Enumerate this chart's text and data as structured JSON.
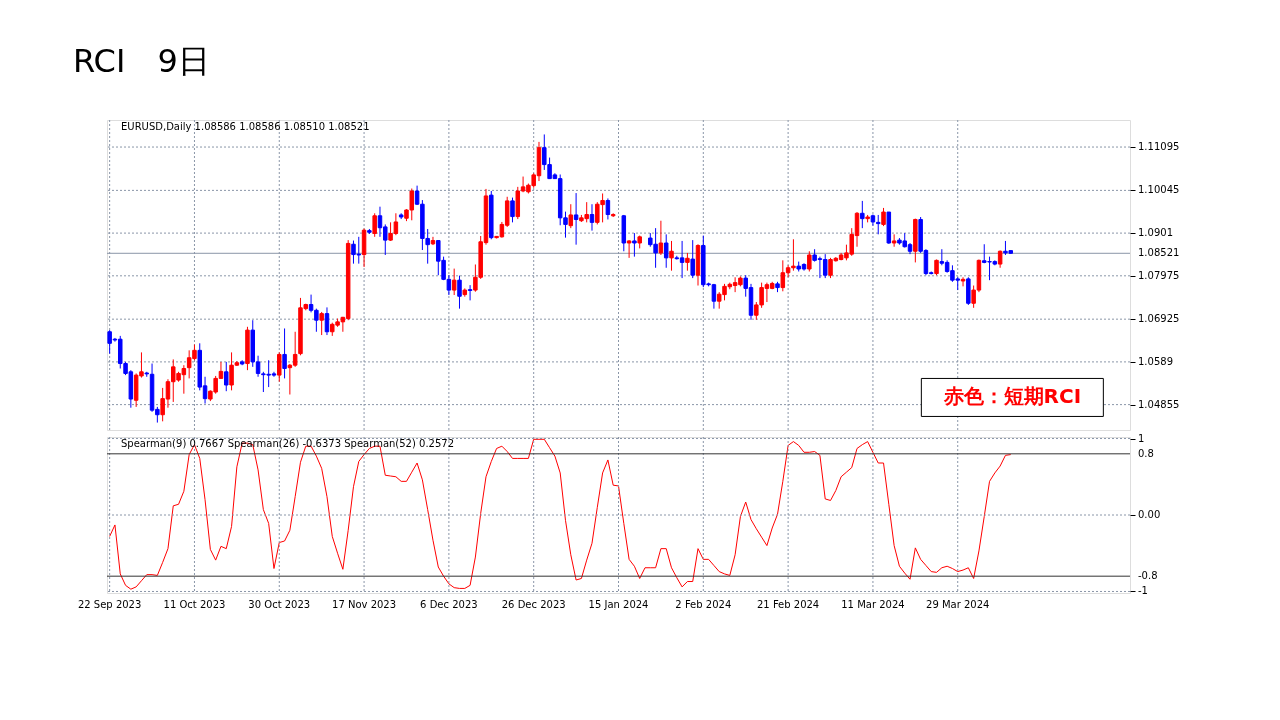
{
  "chart_data": [
    {
      "type": "candlestick",
      "title": "RCI　9日",
      "categories": [
        null,
        null,
        null,
        null,
        null,
        null,
        null,
        null,
        null,
        null,
        null,
        null,
        null,
        null,
        null,
        null,
        null,
        null,
        null,
        null,
        null,
        null,
        null,
        null,
        null,
        null,
        null,
        null,
        null,
        null,
        null,
        null,
        null,
        null,
        null,
        null,
        null,
        null,
        null,
        null,
        null,
        null,
        null,
        null,
        null,
        null,
        null,
        null,
        null,
        null,
        null,
        null,
        null,
        null,
        null,
        null,
        null,
        null,
        null,
        null,
        null,
        null,
        null,
        null,
        null,
        null,
        null,
        null,
        null,
        null,
        null,
        null,
        null,
        null,
        null,
        null,
        null,
        null,
        null,
        null,
        null,
        null,
        null,
        null,
        null,
        null,
        null,
        null,
        null,
        null,
        null,
        null,
        null,
        null,
        null,
        null,
        null,
        null,
        null,
        null,
        null,
        null,
        null,
        null,
        null,
        null,
        null,
        null,
        null,
        null,
        null,
        null,
        null,
        null,
        null,
        null,
        null,
        null,
        null,
        null,
        null,
        null,
        null,
        null,
        null,
        null,
        null,
        null,
        null,
        null,
        null,
        null,
        null,
        null,
        null,
        null,
        null,
        null,
        null,
        null,
        null,
        null,
        null,
        null,
        null,
        null,
        null,
        null,
        null,
        null,
        null,
        null,
        null,
        null,
        null,
        null,
        null,
        null,
        null,
        null,
        null,
        null,
        null,
        null,
        null,
        null,
        null,
        null,
        null,
        null,
        null,
        null,
        null,
        null,
        null,
        null,
        null,
        null,
        null,
        null,
        null,
        null,
        null,
        null,
        null,
        null,
        null,
        null,
        null,
        null,
        null,
        null,
        null
      ],
      "ohlc": [
        [
          1.0662,
          1.0666,
          1.0609,
          1.0634
        ],
        [
          1.0644,
          1.0647,
          1.0638,
          1.0642
        ],
        [
          1.0644,
          1.0652,
          1.0573,
          1.0585
        ],
        [
          1.0585,
          1.0589,
          1.0557,
          1.0561
        ],
        [
          1.0565,
          1.0569,
          1.0478,
          1.0499
        ],
        [
          1.0496,
          1.0561,
          1.048,
          1.0557
        ],
        [
          1.0555,
          1.0612,
          1.0551,
          1.0565
        ],
        [
          1.0562,
          1.0565,
          1.0553,
          1.056
        ],
        [
          1.0559,
          1.0585,
          1.0468,
          1.0472
        ],
        [
          1.0474,
          1.048,
          1.0442,
          1.0461
        ],
        [
          1.0461,
          1.0526,
          1.0445,
          1.05
        ],
        [
          1.0499,
          1.0547,
          1.0478,
          1.0541
        ],
        [
          1.0541,
          1.0595,
          1.0492,
          1.0577
        ],
        [
          1.0545,
          1.0565,
          1.0541,
          1.0561
        ],
        [
          1.0558,
          1.0581,
          1.0512,
          1.0573
        ],
        [
          1.0575,
          1.0617,
          1.0549,
          1.0599
        ],
        [
          1.0597,
          1.0631,
          1.0593,
          1.0617
        ],
        [
          1.0617,
          1.0634,
          1.052,
          1.0528
        ],
        [
          1.0531,
          1.0553,
          1.0488,
          1.05
        ],
        [
          1.0499,
          1.052,
          1.0494,
          1.0518
        ],
        [
          1.0516,
          1.0555,
          1.0512,
          1.0549
        ],
        [
          1.0549,
          1.0589,
          1.0549,
          1.0566
        ],
        [
          1.0565,
          1.0589,
          1.0518,
          1.0533
        ],
        [
          1.0533,
          1.0612,
          1.052,
          1.0581
        ],
        [
          1.0581,
          1.0591,
          1.0579,
          1.0587
        ],
        [
          1.0589,
          1.0593,
          1.0581,
          1.0584
        ],
        [
          1.0585,
          1.0674,
          1.0569,
          1.0666
        ],
        [
          1.0666,
          1.069,
          1.0577,
          1.0589
        ],
        [
          1.0589,
          1.0604,
          1.0553,
          1.0561
        ],
        [
          1.056,
          1.0565,
          1.0516,
          1.0558
        ],
        [
          1.0559,
          1.0593,
          1.0528,
          1.0557
        ],
        [
          1.056,
          1.0565,
          1.0553,
          1.0557
        ],
        [
          1.0557,
          1.0612,
          1.0541,
          1.0607
        ],
        [
          1.0607,
          1.067,
          1.0549,
          1.0573
        ],
        [
          1.0575,
          1.0584,
          1.051,
          1.0581
        ],
        [
          1.0581,
          1.0662,
          1.0577,
          1.0607
        ],
        [
          1.0609,
          1.0744,
          1.0605,
          1.072
        ],
        [
          1.0718,
          1.073,
          1.0714,
          1.0728
        ],
        [
          1.0728,
          1.0752,
          1.0709,
          1.0714
        ],
        [
          1.0714,
          1.0718,
          1.0662,
          1.069
        ],
        [
          1.069,
          1.071,
          1.0654,
          1.0706
        ],
        [
          1.0706,
          1.0721,
          1.0654,
          1.0662
        ],
        [
          1.0662,
          1.0684,
          1.0652,
          1.068
        ],
        [
          1.0678,
          1.0694,
          1.0674,
          1.0686
        ],
        [
          1.0686,
          1.0698,
          1.0662,
          1.0697
        ],
        [
          1.0694,
          1.0884,
          1.069,
          1.0876
        ],
        [
          1.0874,
          1.0883,
          1.0827,
          1.0849
        ],
        [
          1.085,
          1.0892,
          1.0827,
          1.0848
        ],
        [
          1.0849,
          1.0912,
          1.0819,
          1.0908
        ],
        [
          1.0907,
          1.0911,
          1.0899,
          1.0903
        ],
        [
          1.09,
          1.0949,
          1.0892,
          1.0943
        ],
        [
          1.0943,
          1.0965,
          1.0892,
          1.0914
        ],
        [
          1.0916,
          1.0922,
          1.0848,
          1.0884
        ],
        [
          1.0884,
          1.0927,
          1.0882,
          1.09
        ],
        [
          1.09,
          1.0949,
          1.0896,
          1.0928
        ],
        [
          1.0945,
          1.0949,
          1.0935,
          1.094
        ],
        [
          1.0937,
          1.0959,
          1.093,
          1.0957
        ],
        [
          1.0957,
          1.1009,
          1.0932,
          1.1003
        ],
        [
          1.1003,
          1.1016,
          1.0969,
          1.0971
        ],
        [
          1.0971,
          1.0981,
          1.086,
          1.0888
        ],
        [
          1.0888,
          1.0911,
          1.0827,
          1.0873
        ],
        [
          1.0875,
          1.0892,
          1.0872,
          1.0883
        ],
        [
          1.0883,
          1.0884,
          1.0799,
          1.0833
        ],
        [
          1.0835,
          1.0844,
          1.0787,
          1.0789
        ],
        [
          1.0789,
          1.0799,
          1.0751,
          1.0763
        ],
        [
          1.0763,
          1.0815,
          1.0751,
          1.0787
        ],
        [
          1.0787,
          1.0798,
          1.0718,
          1.0748
        ],
        [
          1.0752,
          1.0767,
          1.0747,
          1.0763
        ],
        [
          1.0764,
          1.0775,
          1.0738,
          1.0762
        ],
        [
          1.0763,
          1.0825,
          1.0759,
          1.0794
        ],
        [
          1.0794,
          1.0894,
          1.079,
          1.088
        ],
        [
          1.0878,
          1.1008,
          1.0873,
          1.0991
        ],
        [
          1.0993,
          1.1003,
          1.0886,
          1.089
        ],
        [
          1.089,
          1.0894,
          1.0888,
          1.0893
        ],
        [
          1.0892,
          1.0928,
          1.089,
          1.0922
        ],
        [
          1.092,
          1.0989,
          1.0916,
          1.0979
        ],
        [
          1.0979,
          1.0987,
          1.0927,
          1.0941
        ],
        [
          1.0941,
          1.1013,
          1.0935,
          1.1003
        ],
        [
          1.1003,
          1.1038,
          1.1,
          1.1013
        ],
        [
          1.1001,
          1.1021,
          1.0997,
          1.1017
        ],
        [
          1.1016,
          1.1046,
          1.1011,
          1.1042
        ],
        [
          1.104,
          1.1122,
          1.1027,
          1.1108
        ],
        [
          1.1108,
          1.114,
          1.1054,
          1.1067
        ],
        [
          1.1067,
          1.1084,
          1.1032,
          1.1033
        ],
        [
          1.1042,
          1.1046,
          1.1032,
          1.1033
        ],
        [
          1.1033,
          1.1043,
          1.092,
          1.0938
        ],
        [
          1.0938,
          1.0953,
          1.089,
          1.0922
        ],
        [
          1.0919,
          1.0971,
          1.0913,
          1.0945
        ],
        [
          1.0945,
          1.0998,
          1.0873,
          1.0934
        ],
        [
          1.0931,
          1.0945,
          1.0928,
          1.0938
        ],
        [
          1.0936,
          1.0976,
          1.0927,
          1.0946
        ],
        [
          1.0946,
          1.0971,
          1.0907,
          1.0927
        ],
        [
          1.0927,
          1.0976,
          1.0922,
          1.0971
        ],
        [
          1.097,
          1.0997,
          1.0927,
          1.098
        ],
        [
          1.098,
          1.0985,
          1.0934,
          1.0946
        ],
        [
          1.0943,
          1.0949,
          1.094,
          1.0946
        ],
        null,
        [
          1.0943,
          1.0945,
          1.0857,
          1.0877
        ],
        [
          1.0877,
          1.0884,
          1.0841,
          1.0882
        ],
        [
          1.0882,
          1.0901,
          1.0844,
          1.0877
        ],
        [
          1.0877,
          1.0895,
          1.0864,
          1.0892
        ],
        null,
        [
          1.0889,
          1.0901,
          1.0868,
          1.0873
        ],
        [
          1.0874,
          1.0913,
          1.0817,
          1.0853
        ],
        [
          1.0853,
          1.0931,
          1.0848,
          1.0877
        ],
        [
          1.0877,
          1.0898,
          1.0817,
          1.0841
        ],
        [
          1.0841,
          1.0882,
          1.081,
          1.0857
        ],
        [
          1.0841,
          1.0846,
          1.0837,
          1.0839
        ],
        [
          1.0841,
          1.0882,
          1.0792,
          1.083
        ],
        [
          1.083,
          1.0853,
          1.081,
          1.084
        ],
        [
          1.0838,
          1.0884,
          1.0792,
          1.0799
        ],
        [
          1.0799,
          1.0874,
          1.0774,
          1.0871
        ],
        [
          1.0871,
          1.0895,
          1.077,
          1.0776
        ],
        [
          1.0778,
          1.0781,
          1.0772,
          1.0776
        ],
        [
          1.0776,
          1.0778,
          1.0718,
          1.0736
        ],
        [
          1.0736,
          1.0758,
          1.0718,
          1.0753
        ],
        [
          1.0752,
          1.0778,
          1.0738,
          1.0772
        ],
        [
          1.0771,
          1.0781,
          1.0765,
          1.0777
        ],
        [
          1.0774,
          1.0794,
          1.0758,
          1.0781
        ],
        [
          1.0776,
          1.0796,
          1.0772,
          1.0792
        ],
        [
          1.0792,
          1.0799,
          1.0747,
          1.0767
        ],
        [
          1.0769,
          1.0778,
          1.0691,
          1.0702
        ],
        [
          1.0702,
          1.0734,
          1.0691,
          1.0727
        ],
        [
          1.0727,
          1.0781,
          1.072,
          1.0769
        ],
        [
          1.0767,
          1.0781,
          1.0734,
          1.0776
        ],
        [
          1.0767,
          1.0783,
          1.0765,
          1.0779
        ],
        [
          1.0778,
          1.0783,
          1.0758,
          1.0769
        ],
        [
          1.0769,
          1.0835,
          1.076,
          1.0805
        ],
        [
          1.0805,
          1.0823,
          1.0794,
          1.0817
        ],
        [
          1.0817,
          1.0886,
          1.081,
          1.0821
        ],
        [
          1.0821,
          1.0832,
          1.0808,
          1.0814
        ],
        [
          1.0825,
          1.0828,
          1.081,
          1.0814
        ],
        [
          1.0814,
          1.0857,
          1.0808,
          1.0848
        ],
        [
          1.0848,
          1.0862,
          1.0832,
          1.0835
        ],
        [
          1.0839,
          1.0844,
          1.0792,
          1.0837
        ],
        [
          1.0837,
          1.085,
          1.0792,
          1.0799
        ],
        [
          1.0799,
          1.0841,
          1.0792,
          1.0837
        ],
        [
          1.0834,
          1.0843,
          1.0832,
          1.084
        ],
        [
          1.0837,
          1.0853,
          1.0835,
          1.0848
        ],
        [
          1.0841,
          1.0873,
          1.0835,
          1.0853
        ],
        [
          1.085,
          1.0913,
          1.0846,
          1.0898
        ],
        [
          1.0895,
          1.0952,
          1.0868,
          1.0949
        ],
        [
          1.0949,
          1.0979,
          1.0913,
          1.0936
        ],
        [
          1.0936,
          1.0945,
          1.0927,
          1.094
        ],
        [
          1.0943,
          1.0946,
          1.0919,
          1.0928
        ],
        [
          1.0927,
          1.0945,
          1.0898,
          1.0924
        ],
        [
          1.0922,
          1.0962,
          1.0918,
          1.0952
        ],
        [
          1.0952,
          1.0952,
          1.0875,
          1.0877
        ],
        [
          1.0877,
          1.0898,
          1.0868,
          1.0882
        ],
        [
          1.0884,
          1.0889,
          1.0873,
          1.0877
        ],
        [
          1.0882,
          1.0901,
          1.0866,
          1.0868
        ],
        [
          1.0873,
          1.0877,
          1.085,
          1.0857
        ],
        [
          1.0857,
          1.0936,
          1.083,
          1.0934
        ],
        [
          1.0934,
          1.094,
          1.0853,
          1.0857
        ],
        [
          1.0859,
          1.0862,
          1.0799,
          1.0803
        ],
        [
          1.0805,
          1.0808,
          1.0801,
          1.0803
        ],
        [
          1.0803,
          1.0837,
          1.0799,
          1.0835
        ],
        [
          1.0832,
          1.0862,
          1.0823,
          1.0828
        ],
        [
          1.083,
          1.0835,
          1.0805,
          1.0808
        ],
        [
          1.081,
          1.0823,
          1.0783,
          1.0787
        ],
        [
          1.079,
          1.0794,
          1.0763,
          1.0787
        ],
        [
          1.0785,
          1.0794,
          1.0772,
          1.0789
        ],
        [
          1.079,
          1.0794,
          1.0727,
          1.0731
        ],
        [
          1.0731,
          1.0774,
          1.072,
          1.0763
        ],
        [
          1.0763,
          1.0837,
          1.0758,
          1.0835
        ],
        [
          1.0834,
          1.0874,
          1.0828,
          1.083
        ],
        [
          1.0832,
          1.0844,
          1.0787,
          1.0831
        ],
        [
          1.0832,
          1.0835,
          1.0823,
          1.0826
        ],
        [
          1.0826,
          1.0859,
          1.0817,
          1.0857
        ],
        [
          1.0857,
          1.0882,
          1.0848,
          1.0853
        ],
        [
          1.08586,
          1.08586,
          1.0851,
          1.08521
        ],
        null,
        null,
        null,
        null,
        null,
        null,
        null,
        null,
        null,
        null,
        null,
        null,
        null,
        null,
        null,
        null,
        null,
        null,
        null,
        null,
        null,
        null
      ],
      "colors": [
        "#0000ff",
        "#0000ff",
        "#0000ff",
        "#0000ff",
        "#0000ff",
        "#ff0000",
        "#ff0000",
        "#0000ff",
        "#0000ff",
        "#0000ff",
        "#ff0000",
        "#ff0000",
        "#ff0000",
        "#ff0000",
        "#ff0000",
        "#ff0000",
        "#ff0000",
        "#0000ff",
        "#0000ff",
        "#ff0000",
        "#ff0000",
        "#ff0000",
        "#0000ff",
        "#ff0000",
        "#ff0000",
        "#0000ff",
        "#ff0000",
        "#0000ff",
        "#0000ff",
        "#0000ff",
        "#0000ff",
        "#0000ff",
        "#ff0000",
        "#0000ff",
        "#ff0000",
        "#ff0000",
        "#ff0000",
        "#ff0000",
        "#0000ff",
        "#0000ff",
        "#ff0000",
        "#0000ff",
        "#ff0000",
        "#ff0000",
        "#ff0000",
        "#ff0000",
        "#0000ff",
        "#0000ff",
        "#ff0000",
        "#0000ff",
        "#ff0000",
        "#0000ff",
        "#0000ff",
        "#ff0000",
        "#ff0000",
        "#0000ff",
        "#ff0000",
        "#ff0000",
        "#0000ff",
        "#0000ff",
        "#0000ff",
        "#ff0000",
        "#0000ff",
        "#0000ff",
        "#0000ff",
        "#ff0000",
        "#0000ff",
        "#ff0000",
        "#0000ff",
        "#ff0000",
        "#ff0000",
        "#ff0000",
        "#0000ff",
        "#ff0000",
        "#ff0000",
        "#ff0000",
        "#0000ff",
        "#ff0000",
        "#ff0000",
        "#ff0000",
        "#ff0000",
        "#ff0000",
        "#0000ff",
        "#0000ff",
        "#0000ff",
        "#0000ff",
        "#0000ff",
        "#ff0000",
        "#0000ff",
        "#ff0000",
        "#ff0000",
        "#0000ff",
        "#ff0000",
        "#ff0000",
        "#0000ff",
        "#ff0000",
        null,
        "#0000ff",
        "#ff0000",
        "#0000ff",
        "#ff0000",
        null,
        "#0000ff",
        "#0000ff",
        "#ff0000",
        "#0000ff",
        "#ff0000",
        "#0000ff",
        "#0000ff",
        "#ff0000",
        "#0000ff",
        "#ff0000",
        "#0000ff",
        "#0000ff",
        "#0000ff",
        "#ff0000",
        "#ff0000",
        "#ff0000",
        "#ff0000",
        "#ff0000",
        "#0000ff",
        "#0000ff",
        "#ff0000",
        "#ff0000",
        "#ff0000",
        "#ff0000",
        "#0000ff",
        "#ff0000",
        "#ff0000",
        "#ff0000",
        "#0000ff",
        "#0000ff",
        "#ff0000",
        "#0000ff",
        "#0000ff",
        "#0000ff",
        "#ff0000",
        "#ff0000",
        "#ff0000",
        "#ff0000",
        "#ff0000",
        "#ff0000",
        "#0000ff",
        "#ff0000",
        "#0000ff",
        "#0000ff",
        "#ff0000",
        "#0000ff",
        "#ff0000",
        "#0000ff",
        "#0000ff",
        "#0000ff",
        "#ff0000",
        "#0000ff",
        "#0000ff",
        "#0000ff",
        "#ff0000",
        "#0000ff",
        "#0000ff",
        "#0000ff",
        "#0000ff",
        "#ff0000",
        "#0000ff",
        "#ff0000",
        "#ff0000",
        "#0000ff",
        "#0000ff",
        "#0000ff",
        "#ff0000",
        "#0000ff",
        "#0000ff",
        null,
        null,
        null,
        null,
        null,
        null,
        null,
        null,
        null,
        null,
        null,
        null,
        null,
        null,
        null,
        null,
        null,
        null,
        null,
        null,
        null,
        null
      ],
      "ylim": [
        1.0424,
        1.1175
      ],
      "yticks": [
        1.04855,
        1.0589,
        1.06925,
        1.07975,
        1.0901,
        1.10045,
        1.11095
      ],
      "ref_lines": [
        {
          "axis": "y",
          "value": 1.08521,
          "label": "1.08521",
          "color": "#8a96a8"
        }
      ],
      "grid": true,
      "tick_labels": "y",
      "annotations": [
        "EURUSD,Daily 1.08586 1.08586 1.08510 1.08521",
        "赤色：短期RCI"
      ]
    },
    {
      "type": "line",
      "categories": [
        "22 Sep 2023",
        null,
        null,
        null,
        null,
        null,
        null,
        null,
        null,
        null,
        null,
        null,
        null,
        null,
        null,
        null,
        "11 Oct 2023",
        null,
        null,
        null,
        null,
        null,
        null,
        null,
        null,
        null,
        null,
        null,
        null,
        null,
        null,
        null,
        "30 Oct 2023",
        null,
        null,
        null,
        null,
        null,
        null,
        null,
        null,
        null,
        null,
        null,
        null,
        null,
        null,
        null,
        "17 Nov 2023",
        null,
        null,
        null,
        null,
        null,
        null,
        null,
        null,
        null,
        null,
        null,
        null,
        null,
        null,
        null,
        "6 Dec 2023",
        null,
        null,
        null,
        null,
        null,
        null,
        null,
        null,
        null,
        null,
        null,
        null,
        null,
        null,
        null,
        "26 Dec 2023",
        null,
        null,
        null,
        null,
        null,
        null,
        null,
        null,
        null,
        null,
        null,
        null,
        null,
        null,
        null,
        "15 Jan 2024",
        null,
        null,
        null,
        null,
        null,
        null,
        null,
        null,
        null,
        null,
        null,
        null,
        null,
        null,
        null,
        "2 Feb 2024",
        null,
        null,
        null,
        null,
        null,
        null,
        null,
        null,
        null,
        null,
        null,
        null,
        null,
        null,
        null,
        "21 Feb 2024",
        null,
        null,
        null,
        null,
        null,
        null,
        null,
        null,
        null,
        null,
        null,
        null,
        null,
        null,
        null,
        "11 Mar 2024",
        null,
        null,
        null,
        null,
        null,
        null,
        null,
        null,
        null,
        null,
        null,
        null,
        null,
        null,
        null,
        "29 Mar 2024",
        null,
        null,
        null,
        null,
        null,
        null,
        null,
        null,
        null,
        null,
        null,
        null,
        null,
        null,
        null,
        null,
        null,
        null,
        null,
        null,
        null,
        null,
        null,
        null,
        null,
        null,
        null,
        null,
        null,
        null,
        null,
        null
      ],
      "series": [
        {
          "color": "#ff0000",
          "values": [
            -0.28,
            -0.13,
            -0.77,
            -0.92,
            -0.97,
            -0.94,
            -0.86,
            -0.78,
            -0.78,
            -0.79,
            -0.62,
            -0.44,
            0.12,
            0.14,
            0.31,
            0.79,
            0.92,
            0.74,
            0.2,
            -0.45,
            -0.59,
            -0.41,
            -0.44,
            -0.15,
            0.63,
            0.94,
            0.94,
            0.92,
            0.59,
            0.07,
            -0.11,
            -0.7,
            -0.36,
            -0.34,
            -0.2,
            0.24,
            0.69,
            0.9,
            0.9,
            0.77,
            0.61,
            0.24,
            -0.28,
            -0.5,
            -0.71,
            -0.2,
            0.37,
            0.7,
            0.79,
            0.87,
            0.9,
            0.9,
            0.52,
            0.51,
            0.5,
            0.44,
            0.44,
            0.56,
            0.68,
            0.46,
            0.07,
            -0.33,
            -0.68,
            -0.8,
            -0.9,
            -0.95,
            -0.96,
            -0.96,
            -0.92,
            -0.55,
            0.02,
            0.5,
            0.7,
            0.87,
            0.9,
            0.83,
            0.74,
            0.74,
            0.74,
            0.74,
            0.99,
            0.99,
            0.99,
            0.88,
            0.77,
            0.55,
            -0.07,
            -0.52,
            -0.85,
            -0.83,
            -0.59,
            -0.37,
            0.1,
            0.55,
            0.72,
            0.39,
            0.38,
            -0.11,
            -0.58,
            -0.67,
            -0.83,
            -0.69,
            -0.69,
            -0.69,
            -0.44,
            -0.44,
            -0.69,
            -0.82,
            -0.94,
            -0.87,
            -0.87,
            -0.44,
            -0.58,
            -0.58,
            -0.66,
            -0.74,
            -0.77,
            -0.79,
            -0.52,
            -0.02,
            0.17,
            -0.06,
            -0.18,
            -0.29,
            -0.4,
            -0.17,
            0.01,
            0.44,
            0.91,
            0.96,
            0.91,
            0.82,
            0.82,
            0.83,
            0.78,
            0.21,
            0.19,
            0.32,
            0.5,
            0.56,
            0.62,
            0.87,
            0.92,
            0.96,
            0.82,
            0.68,
            0.68,
            0.14,
            -0.4,
            -0.67,
            -0.76,
            -0.84,
            -0.43,
            -0.58,
            -0.66,
            -0.74,
            -0.75,
            -0.69,
            -0.67,
            -0.7,
            -0.74,
            -0.72,
            -0.69,
            -0.83,
            -0.47,
            -0.02,
            0.44,
            0.55,
            0.64,
            0.78,
            0.79,
            null,
            null,
            null,
            null,
            null,
            null,
            null,
            null,
            null,
            null,
            null,
            null,
            null,
            null,
            null,
            null,
            null,
            null,
            null,
            null,
            null,
            null
          ]
        }
      ],
      "ylim": [
        -1.02,
        1.02
      ],
      "yticks": [
        -1,
        {
          "value": 0,
          "label": "0.00"
        },
        1
      ],
      "ref_lines": [
        {
          "axis": "y",
          "value": 0.8,
          "label": "0.8",
          "color": "#333333"
        },
        {
          "axis": "y",
          "value": -0.8,
          "label": "-0.8",
          "color": "#333333"
        }
      ],
      "grid": true,
      "annotations": [
        "Spearman(9) 0.7667 Spearman(26) -0.6373 Spearman(52) 0.2572"
      ]
    }
  ]
}
